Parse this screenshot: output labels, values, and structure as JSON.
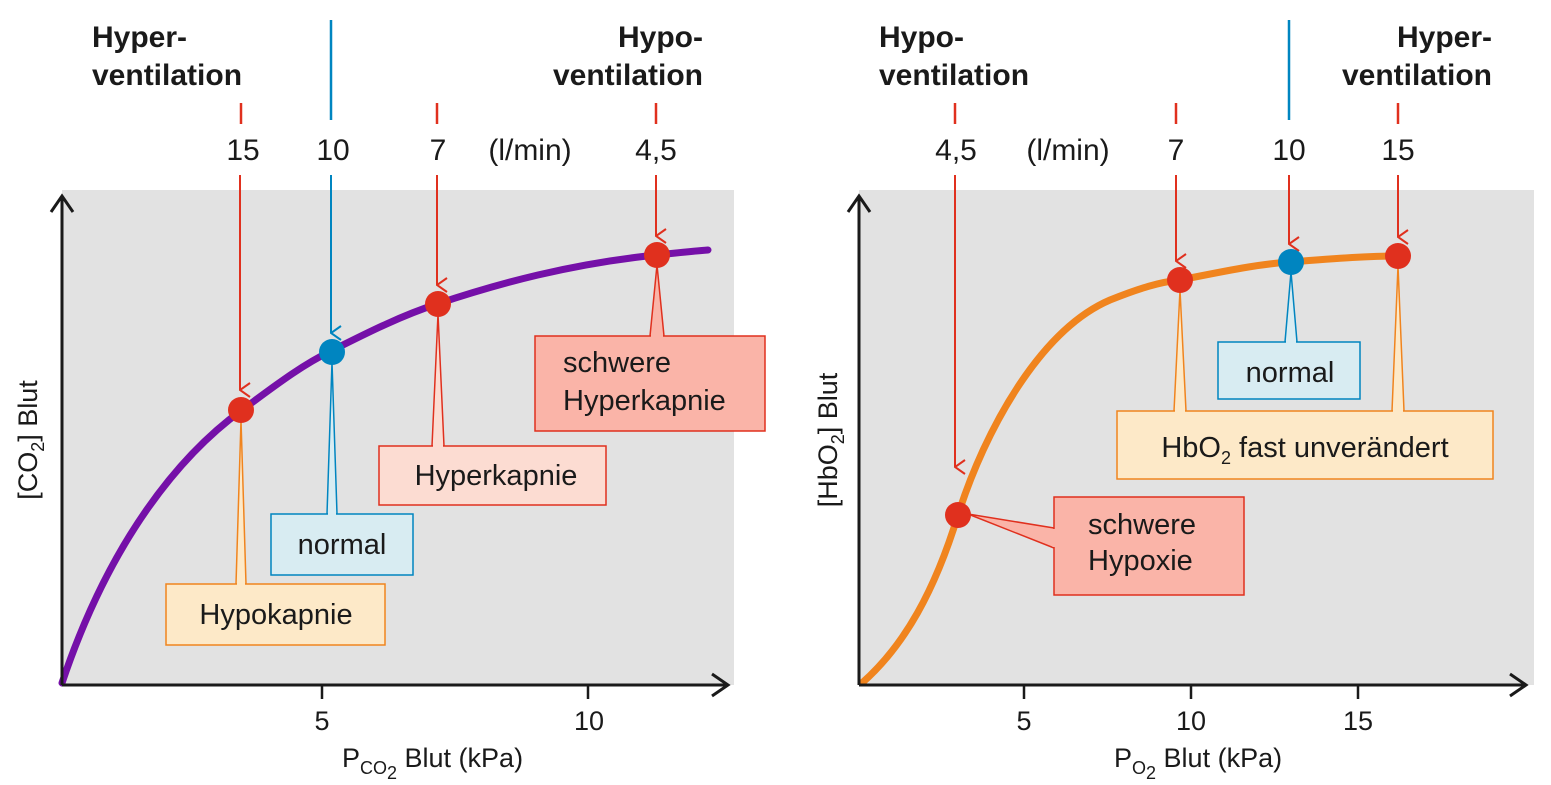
{
  "colors": {
    "plot_bg": "#e2e2e2",
    "axis": "#1a1a1a",
    "red": "#e0301e",
    "blue": "#0085c0",
    "orange_line": "#f0841e",
    "purple_line": "#7510a8",
    "box_red_fill": "#fab4a8",
    "box_red_border": "#e0301e",
    "box_pink_fill": "#fcdcd2",
    "box_blue_fill": "#d8ecf2",
    "box_blue_border": "#0085c0",
    "box_orange_fill": "#fde9c8",
    "box_orange_border": "#f0841e"
  },
  "left": {
    "header_left_line1": "Hyper-",
    "header_left_line2": "ventilation",
    "header_right_line1": "Hypo-",
    "header_right_line2": "ventilation",
    "unit": "(l/min)",
    "ventilation_values": [
      "15",
      "10",
      "7",
      "4,5"
    ],
    "ylabel_pre": "[CO",
    "ylabel_sub": "2",
    "ylabel_post": "] Blut",
    "xlabel_pre": "P",
    "xlabel_sub": "CO",
    "xlabel_subsub": "2",
    "xlabel_post": " Blut (kPa)",
    "xticks": [
      "5",
      "10"
    ],
    "boxes": {
      "hypokapnie": "Hypokapnie",
      "normal": "normal",
      "hyperkapnie": "Hyperkapnie",
      "schwere_line1": "schwere",
      "schwere_line2": "Hyperkapnie"
    }
  },
  "right": {
    "header_left_line1": "Hypo-",
    "header_left_line2": "ventilation",
    "header_right_line1": "Hyper-",
    "header_right_line2": "ventilation",
    "unit": "(l/min)",
    "ventilation_values": [
      "4,5",
      "7",
      "10",
      "15"
    ],
    "ylabel_pre": "[HbO",
    "ylabel_sub": "2",
    "ylabel_post": "] Blut",
    "xlabel_pre": "P",
    "xlabel_sub": "O",
    "xlabel_subsub": "2",
    "xlabel_post": " Blut (kPa)",
    "xticks": [
      "5",
      "10",
      "15"
    ],
    "boxes": {
      "normal": "normal",
      "fast_pre": "HbO",
      "fast_sub": "2",
      "fast_post": " fast unverändert",
      "schwere_line1": "schwere",
      "schwere_line2": "Hypoxie"
    }
  }
}
